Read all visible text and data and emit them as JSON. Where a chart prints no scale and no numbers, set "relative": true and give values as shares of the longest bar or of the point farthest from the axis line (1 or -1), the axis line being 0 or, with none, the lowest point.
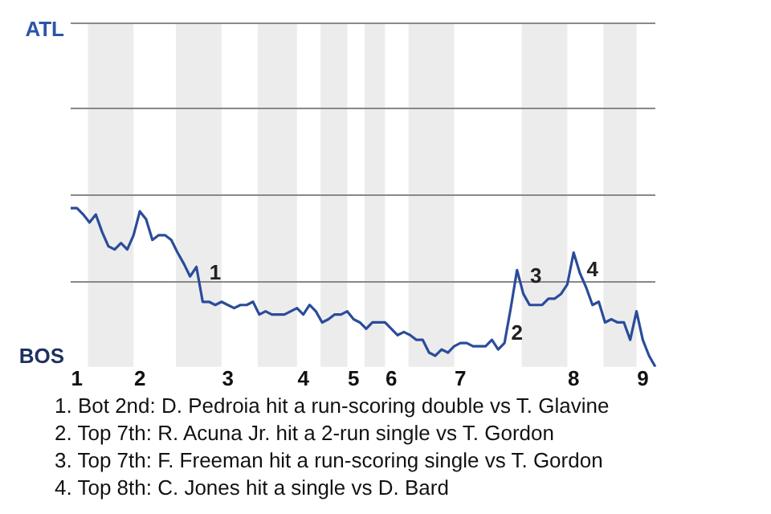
{
  "chart_data": {
    "type": "line",
    "relative": true,
    "categories": [
      null,
      "1",
      null,
      null,
      null,
      null,
      null,
      null,
      null,
      null,
      null,
      "2",
      null,
      null,
      null,
      null,
      null,
      null,
      null,
      null,
      null,
      null,
      null,
      null,
      null,
      "3",
      null,
      null,
      null,
      null,
      null,
      null,
      null,
      null,
      null,
      null,
      null,
      "4",
      null,
      null,
      null,
      null,
      null,
      null,
      null,
      "5",
      null,
      null,
      null,
      null,
      null,
      "6",
      null,
      null,
      null,
      null,
      null,
      null,
      null,
      null,
      null,
      null,
      "7",
      null,
      null,
      null,
      null,
      null,
      null,
      null,
      null,
      null,
      null,
      null,
      null,
      null,
      null,
      null,
      null,
      null,
      "8",
      null,
      null,
      null,
      null,
      null,
      null,
      null,
      null,
      null,
      null,
      "9",
      null,
      null
    ],
    "series": [
      {
        "color": "#2b4c9b",
        "values": [
          1,
          1,
          0.96,
          0.91,
          0.96,
          0.85,
          0.76,
          0.74,
          0.78,
          0.74,
          0.83,
          0.98,
          0.93,
          0.8,
          0.83,
          0.83,
          0.8,
          0.72,
          0.65,
          0.57,
          0.63,
          0.41,
          0.41,
          0.39,
          0.41,
          0.39,
          0.37,
          0.39,
          0.39,
          0.41,
          0.33,
          0.35,
          0.33,
          0.33,
          0.33,
          0.35,
          0.37,
          0.33,
          0.39,
          0.35,
          0.28,
          0.3,
          0.33,
          0.33,
          0.35,
          0.3,
          0.28,
          0.24,
          0.28,
          0.28,
          0.28,
          0.24,
          0.2,
          0.22,
          0.2,
          0.17,
          0.17,
          0.09,
          0.07,
          0.11,
          0.09,
          0.13,
          0.15,
          0.15,
          0.13,
          0.13,
          0.13,
          0.17,
          0.11,
          0.15,
          0.37,
          0.61,
          0.46,
          0.39,
          0.39,
          0.39,
          0.43,
          0.43,
          0.46,
          0.52,
          0.72,
          0.59,
          0.5,
          0.39,
          0.41,
          0.28,
          0.3,
          0.28,
          0.28,
          0.17,
          0.35,
          0.17,
          0.07,
          0
        ]
      }
    ],
    "ref_lines": [
      {
        "axis": "y",
        "value": 0.54,
        "color": "#888888"
      },
      {
        "axis": "y",
        "value": 1.09,
        "color": "#888888"
      },
      {
        "axis": "y",
        "value": 1.63,
        "color": "#888888"
      },
      {
        "axis": "y",
        "value": 2.17,
        "color": "#888888"
      }
    ],
    "legend": false,
    "marker": "none",
    "line_style": "solid",
    "annotations": [
      "ATL",
      "BOS",
      "1",
      "2",
      "3",
      "4",
      "1. Bot 2nd: D. Pedroia hit a run-scoring double vs T. Glavine",
      "2. Top 7th: R. Acuna Jr. hit a 2-run single vs T. Gordon",
      "3. Top 7th: F. Freeman hit a run-scoring single vs T. Gordon",
      "4. Top 8th: C. Jones hit a single vs D. Bard"
    ]
  }
}
